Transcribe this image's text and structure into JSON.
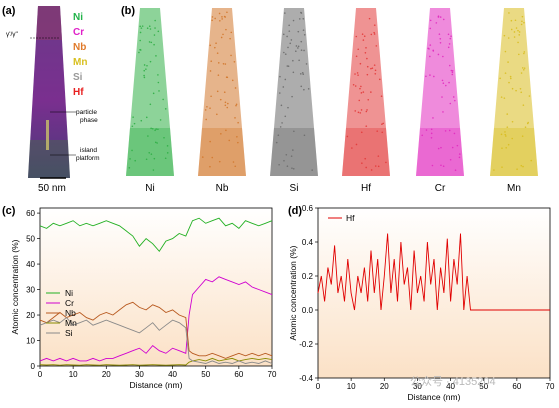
{
  "panel_a": {
    "label": "(a)",
    "elements": [
      {
        "name": "Ni",
        "color": "#22b34a"
      },
      {
        "name": "Cr",
        "color": "#e020c8"
      },
      {
        "name": "Nb",
        "color": "#e07a2a"
      },
      {
        "name": "Mn",
        "color": "#d8c020"
      },
      {
        "name": "Si",
        "color": "#9a9a9a"
      },
      {
        "name": "Hf",
        "color": "#e82020"
      }
    ],
    "annotations": {
      "gamma": "γ'/γ''",
      "particle": "particle\nphase",
      "island": "island\nplatform"
    },
    "scalebar": "50 nm"
  },
  "panel_b": {
    "label": "(b)",
    "maps": [
      {
        "name": "Ni",
        "color": "#2fae45"
      },
      {
        "name": "Nb",
        "color": "#d2772b"
      },
      {
        "name": "Si",
        "color": "#6a6a6a"
      },
      {
        "name": "Hf",
        "color": "#e23a3a"
      },
      {
        "name": "Cr",
        "color": "#e12bbf"
      },
      {
        "name": "Mn",
        "color": "#d8bc1e"
      }
    ]
  },
  "chart_data": [
    {
      "panel": "(c)",
      "type": "line",
      "xlabel": "Distance (nm)",
      "ylabel": "Atomic concentration (%)",
      "xlim": [
        0,
        70
      ],
      "ylim": [
        0,
        62
      ],
      "xticks": [
        0,
        10,
        20,
        30,
        40,
        50,
        60,
        70
      ],
      "yticks": [
        0,
        10,
        20,
        30,
        40,
        50,
        60
      ],
      "legend_position": "left",
      "series": [
        {
          "name": "Ni",
          "color": "#22b022",
          "x": [
            0,
            2,
            4,
            6,
            8,
            10,
            12,
            14,
            16,
            18,
            20,
            22,
            24,
            26,
            28,
            30,
            32,
            34,
            36,
            38,
            40,
            42,
            44,
            45,
            46,
            48,
            50,
            52,
            54,
            56,
            58,
            60,
            62,
            64,
            66,
            68,
            70
          ],
          "y": [
            55,
            54,
            56,
            55,
            56,
            57,
            55,
            56,
            55,
            56,
            57,
            56,
            55,
            53,
            51,
            47,
            50,
            48,
            45,
            49,
            50,
            52,
            51,
            54,
            57,
            58,
            56,
            57,
            58,
            55,
            56,
            54,
            57,
            56,
            55,
            56,
            57
          ]
        },
        {
          "name": "Cr",
          "color": "#d000d0",
          "x": [
            0,
            2,
            4,
            6,
            8,
            10,
            12,
            14,
            16,
            18,
            20,
            22,
            24,
            26,
            28,
            30,
            32,
            34,
            36,
            38,
            40,
            42,
            44,
            45,
            46,
            48,
            50,
            52,
            54,
            56,
            58,
            60,
            62,
            64,
            66,
            68,
            70
          ],
          "y": [
            2,
            3,
            2,
            3,
            2,
            3,
            2,
            2,
            3,
            2,
            3,
            3,
            4,
            5,
            6,
            7,
            5,
            8,
            6,
            5,
            7,
            6,
            5,
            20,
            28,
            31,
            34,
            33,
            35,
            34,
            33,
            32,
            33,
            31,
            30,
            29,
            28
          ]
        },
        {
          "name": "Nb",
          "color": "#b85a20",
          "x": [
            0,
            2,
            4,
            6,
            8,
            10,
            12,
            14,
            16,
            18,
            20,
            22,
            24,
            26,
            28,
            30,
            32,
            34,
            36,
            38,
            40,
            42,
            44,
            45,
            46,
            48,
            50,
            52,
            54,
            56,
            58,
            60,
            62,
            64,
            66,
            68,
            70
          ],
          "y": [
            18,
            17,
            19,
            21,
            19,
            20,
            21,
            19,
            18,
            20,
            21,
            20,
            22,
            24,
            25,
            23,
            22,
            24,
            23,
            21,
            22,
            20,
            19,
            6,
            5,
            4,
            4,
            5,
            4,
            3,
            4,
            5,
            4,
            5,
            4,
            5,
            4
          ]
        },
        {
          "name": "Mn",
          "color": "#8a8a00",
          "x": [
            0,
            2,
            4,
            6,
            8,
            10,
            12,
            14,
            16,
            18,
            20,
            22,
            24,
            26,
            28,
            30,
            32,
            34,
            36,
            38,
            40,
            42,
            44,
            45,
            46,
            48,
            50,
            52,
            54,
            56,
            58,
            60,
            62,
            64,
            66,
            68,
            70
          ],
          "y": [
            0.5,
            0.4,
            0.5,
            0.3,
            0.5,
            0.4,
            0.3,
            0.5,
            0.4,
            0.3,
            0.5,
            0.4,
            0.3,
            0.4,
            0.5,
            0.3,
            0.4,
            0.5,
            0.4,
            0.3,
            0.4,
            0.5,
            0.4,
            1.5,
            2,
            2.5,
            2,
            3,
            2,
            2.5,
            3,
            2,
            2.5,
            3,
            2.5,
            3,
            2.5
          ]
        },
        {
          "name": "Si",
          "color": "#8a8a8a",
          "x": [
            0,
            2,
            4,
            6,
            8,
            10,
            12,
            14,
            16,
            18,
            20,
            22,
            24,
            26,
            28,
            30,
            32,
            34,
            36,
            38,
            40,
            42,
            44,
            45,
            46,
            48,
            50,
            52,
            54,
            56,
            58,
            60,
            62,
            64,
            66,
            68,
            70
          ],
          "y": [
            16,
            17,
            18,
            17,
            19,
            16,
            17,
            18,
            16,
            17,
            18,
            17,
            16,
            15,
            14,
            13,
            15,
            17,
            14,
            16,
            18,
            17,
            15,
            3,
            2,
            1.5,
            1,
            2,
            1,
            1.5,
            1,
            2,
            1,
            1.5,
            1,
            2,
            1
          ]
        }
      ]
    },
    {
      "panel": "(d)",
      "type": "line",
      "xlabel": "Distance (nm)",
      "ylabel": "Atomic concentration (%)",
      "xlim": [
        0,
        70
      ],
      "ylim": [
        -0.4,
        0.6
      ],
      "xticks": [
        0,
        10,
        20,
        30,
        40,
        50,
        60,
        70
      ],
      "yticks": [
        -0.4,
        -0.2,
        0.0,
        0.2,
        0.4,
        0.6
      ],
      "legend_position": "top-left",
      "series": [
        {
          "name": "Hf",
          "color": "#e00000",
          "x": [
            0,
            1,
            2,
            3,
            4,
            5,
            6,
            7,
            8,
            9,
            10,
            11,
            12,
            13,
            14,
            15,
            16,
            17,
            18,
            19,
            20,
            21,
            22,
            23,
            24,
            25,
            26,
            27,
            28,
            29,
            30,
            31,
            32,
            33,
            34,
            35,
            36,
            37,
            38,
            39,
            40,
            41,
            42,
            43,
            44,
            45,
            46,
            47,
            48,
            49,
            50,
            51,
            52,
            53,
            54,
            55,
            56,
            57,
            58,
            59,
            60,
            61,
            62,
            63,
            64,
            65,
            66,
            67,
            68,
            69,
            70
          ],
          "y": [
            0.1,
            0.2,
            0.05,
            0.25,
            0.15,
            0.38,
            0.1,
            0.2,
            0.05,
            0.3,
            0.1,
            0.0,
            0.2,
            0.1,
            0.25,
            0.05,
            0.35,
            0.1,
            0.3,
            0.0,
            0.2,
            0.45,
            0.1,
            0.3,
            0.05,
            0.4,
            0.15,
            0.25,
            0.0,
            0.35,
            0.1,
            0.2,
            0.05,
            0.4,
            0.15,
            0.3,
            0.0,
            0.25,
            0.1,
            0.42,
            0.05,
            0.3,
            0.15,
            0.45,
            0.0,
            0.2,
            0.0,
            0.0,
            0.0,
            0.0,
            0.0,
            0.0,
            0.0,
            0.0,
            0.0,
            0.0,
            0.0,
            0.0,
            0.0,
            0.0,
            0.0,
            0.0,
            0.0,
            0.0,
            0.0,
            0.0,
            0.0,
            0.0,
            0.0,
            0.0,
            0.0
          ]
        }
      ]
    }
  ],
  "watermark": "公众号 · 4135204"
}
